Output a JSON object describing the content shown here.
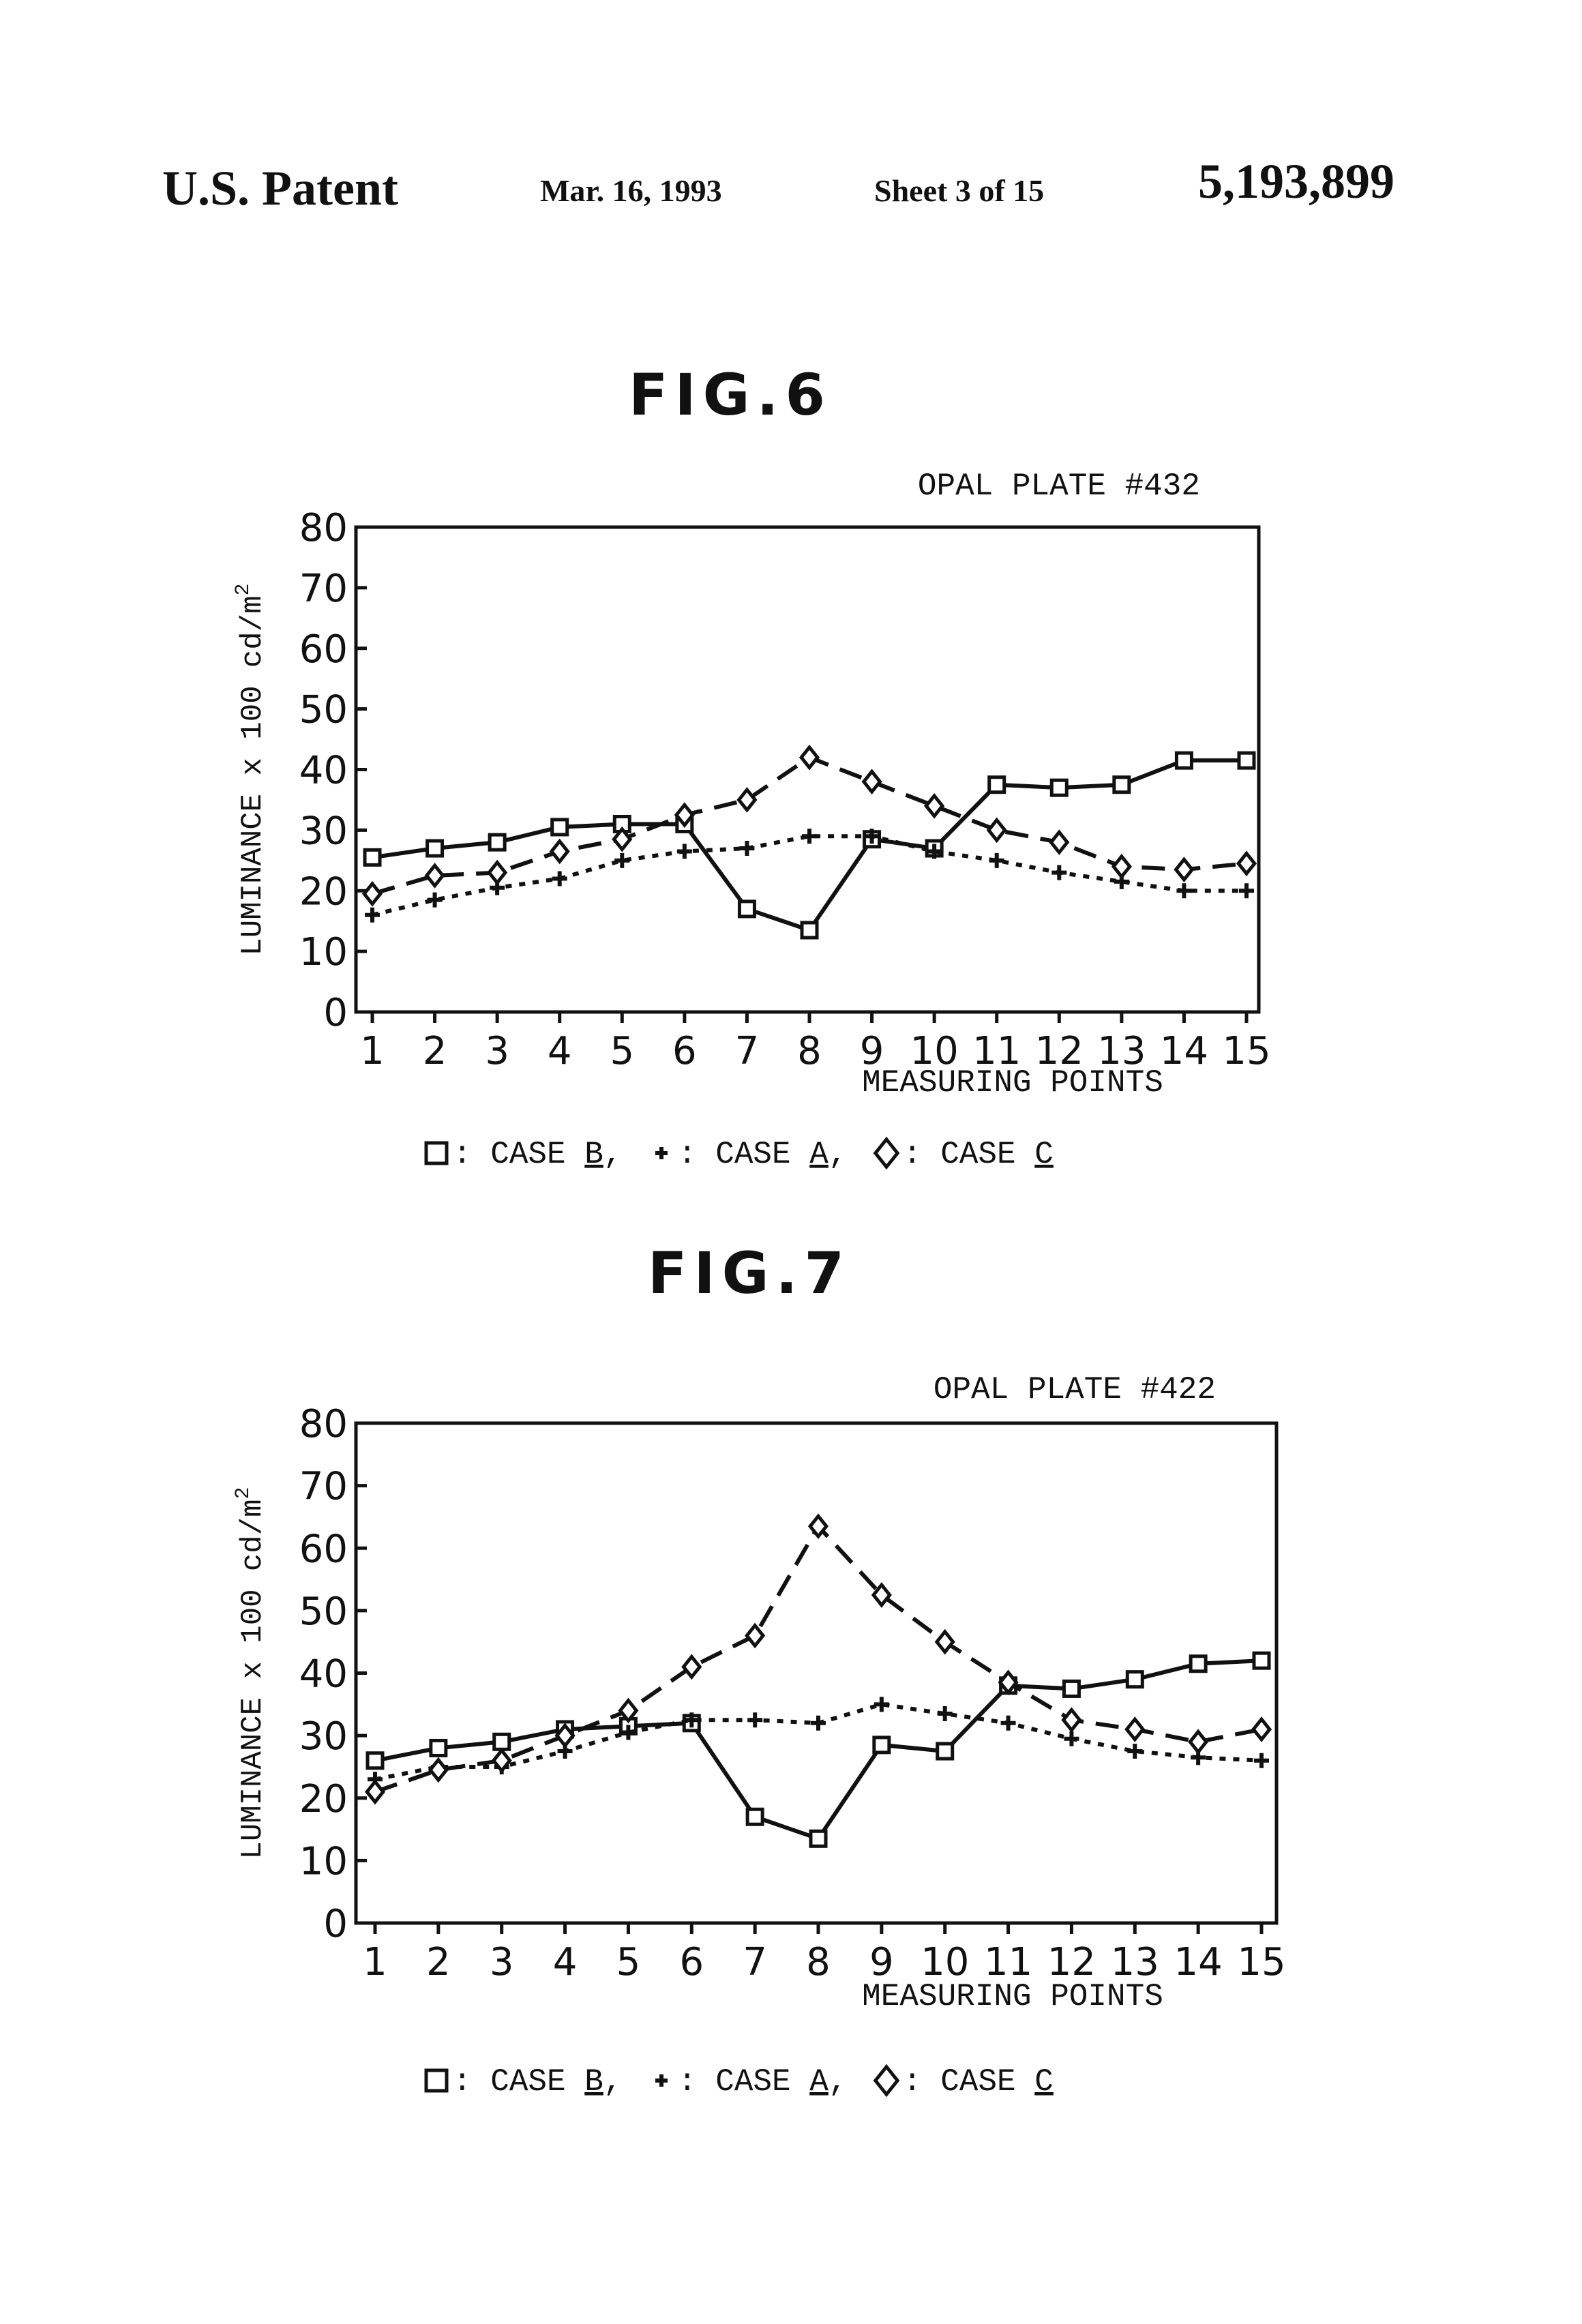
{
  "header": {
    "left": "U.S. Patent",
    "date": "Mar. 16, 1993",
    "sheet": "Sheet 3 of 15",
    "number": "5,193,899"
  },
  "chart_data": [
    {
      "type": "line",
      "figure": "FIG.6",
      "title": "OPAL PLATE #432",
      "xlabel": "MEASURING POINTS",
      "ylabel": "LUMINANCE x 100 cd/m",
      "ylabel_superscript": "2",
      "x": [
        1,
        2,
        3,
        4,
        5,
        6,
        7,
        8,
        9,
        10,
        11,
        12,
        13,
        14,
        15
      ],
      "xlim": [
        1,
        15
      ],
      "ylim": [
        0,
        80
      ],
      "yticks": [
        0,
        10,
        20,
        30,
        40,
        50,
        60,
        70,
        80
      ],
      "grid": false,
      "series": [
        {
          "name": "CASE B",
          "marker": "square",
          "line": "solid",
          "values": [
            25.5,
            27,
            28,
            30.5,
            31,
            31,
            17,
            13.5,
            28.5,
            27,
            37.5,
            37,
            37.5,
            41.5,
            41.5
          ]
        },
        {
          "name": "CASE A",
          "marker": "plus",
          "line": "dotted",
          "values": [
            16,
            18.5,
            20.5,
            22,
            25,
            26.5,
            27,
            29,
            29,
            26.5,
            25,
            23,
            21.5,
            20,
            20
          ]
        },
        {
          "name": "CASE C",
          "marker": "diamond",
          "line": "dashed",
          "values": [
            19.5,
            22.5,
            23,
            26.5,
            28.5,
            32.5,
            35,
            42,
            38,
            34,
            30,
            28,
            24,
            23.5,
            24.5
          ]
        }
      ],
      "legend": {
        "position": "bottom",
        "items": [
          {
            "marker": "square",
            "sep": ":",
            "label": "CASE ",
            "letter": "B",
            "trail": ","
          },
          {
            "marker": "plus",
            "sep": ":",
            "label": "CASE ",
            "letter": "A",
            "trail": ","
          },
          {
            "marker": "diamond",
            "sep": ":",
            "label": "CASE ",
            "letter": "C",
            "trail": ""
          }
        ]
      }
    },
    {
      "type": "line",
      "figure": "FIG.7",
      "title": "OPAL PLATE #422",
      "xlabel": "MEASURING POINTS",
      "ylabel": "LUMINANCE x 100 cd/m",
      "ylabel_superscript": "2",
      "x": [
        1,
        2,
        3,
        4,
        5,
        6,
        7,
        8,
        9,
        10,
        11,
        12,
        13,
        14,
        15
      ],
      "xlim": [
        1,
        15
      ],
      "ylim": [
        0,
        80
      ],
      "yticks": [
        0,
        10,
        20,
        30,
        40,
        50,
        60,
        70,
        80
      ],
      "grid": false,
      "series": [
        {
          "name": "CASE B",
          "marker": "square",
          "line": "solid",
          "values": [
            26,
            28,
            29,
            31,
            31.5,
            32,
            17,
            13.5,
            28.5,
            27.5,
            38,
            37.5,
            39,
            41.5,
            42
          ]
        },
        {
          "name": "CASE A",
          "marker": "plus",
          "line": "dotted",
          "values": [
            23,
            25,
            25,
            27.5,
            30.5,
            32.5,
            32.5,
            32,
            35,
            33.5,
            32,
            29.5,
            27.5,
            26.5,
            26
          ]
        },
        {
          "name": "CASE C",
          "marker": "diamond",
          "line": "dashed",
          "values": [
            21,
            24.5,
            26,
            30,
            34,
            41,
            46,
            63.5,
            52.5,
            45,
            38.5,
            32.5,
            31,
            29,
            31
          ]
        }
      ],
      "legend": {
        "position": "bottom",
        "items": [
          {
            "marker": "square",
            "sep": ":",
            "label": "CASE ",
            "letter": "B",
            "trail": ","
          },
          {
            "marker": "plus",
            "sep": ":",
            "label": "CASE ",
            "letter": "A",
            "trail": ","
          },
          {
            "marker": "diamond",
            "sep": ":",
            "label": "CASE ",
            "letter": "C",
            "trail": ""
          }
        ]
      }
    }
  ]
}
